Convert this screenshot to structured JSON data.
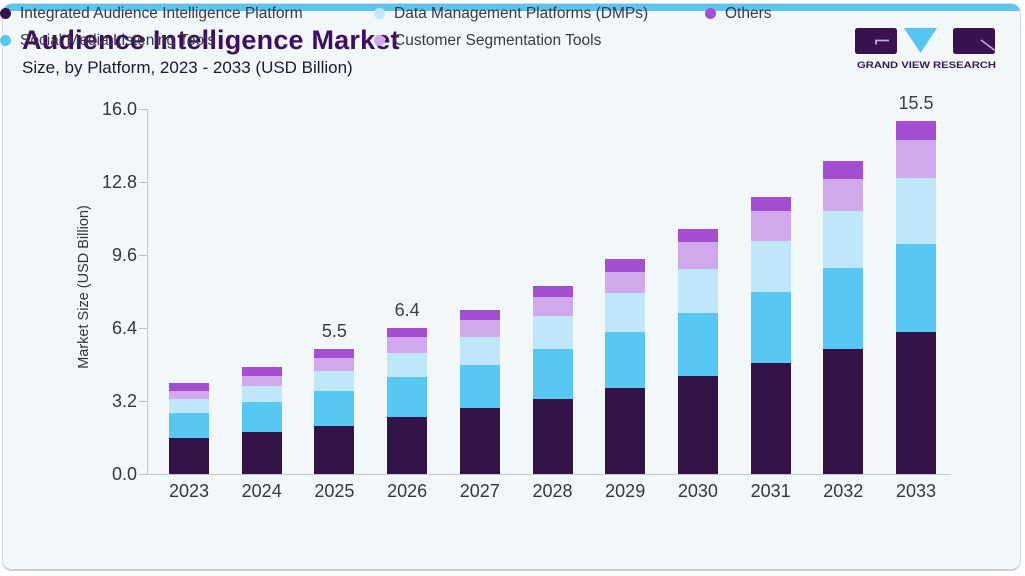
{
  "header": {
    "title": "Audience Intelligence Market",
    "subtitle": "Size, by Platform, 2023 - 2033 (USD Billion)",
    "logo_text": "GRAND VIEW RESEARCH"
  },
  "chart_data": {
    "type": "bar",
    "stacked": true,
    "title": "Audience Intelligence Market Size, by Platform, 2023 - 2033 (USD Billion)",
    "xlabel": "",
    "ylabel": "Market Size (USD Billion)",
    "ylim": [
      0,
      16
    ],
    "yticks": [
      0,
      3.2,
      6.4,
      9.6,
      12.8,
      16
    ],
    "grid": false,
    "legend_position": "bottom",
    "categories": [
      "2023",
      "2024",
      "2025",
      "2026",
      "2027",
      "2028",
      "2029",
      "2030",
      "2031",
      "2032",
      "2033"
    ],
    "series": [
      {
        "name": "Integrated Audience Intelligence Platform",
        "color": "#331449",
        "values": [
          1.56,
          1.85,
          2.12,
          2.52,
          2.89,
          3.3,
          3.77,
          4.29,
          4.88,
          5.5,
          6.23
        ]
      },
      {
        "name": "Social Media Listening Tools",
        "color": "#58c8f3",
        "values": [
          1.11,
          1.33,
          1.53,
          1.73,
          1.9,
          2.2,
          2.48,
          2.76,
          3.1,
          3.54,
          3.88
        ]
      },
      {
        "name": "Data Management Platforms (DMPs)",
        "color": "#bee8fa",
        "values": [
          0.63,
          0.69,
          0.89,
          1.05,
          1.24,
          1.42,
          1.69,
          1.96,
          2.24,
          2.5,
          2.88
        ]
      },
      {
        "name": "Customer Segmentation Tools",
        "color": "#d2a8ec",
        "values": [
          0.35,
          0.44,
          0.57,
          0.72,
          0.73,
          0.84,
          0.94,
          1.18,
          1.3,
          1.4,
          1.65
        ]
      },
      {
        "name": "Others",
        "color": "#a44ed2",
        "values": [
          0.34,
          0.37,
          0.39,
          0.38,
          0.42,
          0.49,
          0.55,
          0.54,
          0.62,
          0.78,
          0.86
        ]
      }
    ],
    "bar_total_labels": [
      "",
      "",
      "5.5",
      "6.4",
      "",
      "",
      "",
      "",
      "",
      "",
      "15.5"
    ]
  },
  "colors": {
    "accent_top": "#5cc5ef",
    "card_bg": "#f2f7fa",
    "card_border": "#cfd8df",
    "title_text": "#3c0d63",
    "subtitle_text": "#1b1c30",
    "axis_text": "#36363f",
    "legend_text": "#3a3a42",
    "axis_line": "#c2c8d0",
    "logo_dark": "#3a1250",
    "logo_blue": "#55c6f1"
  }
}
